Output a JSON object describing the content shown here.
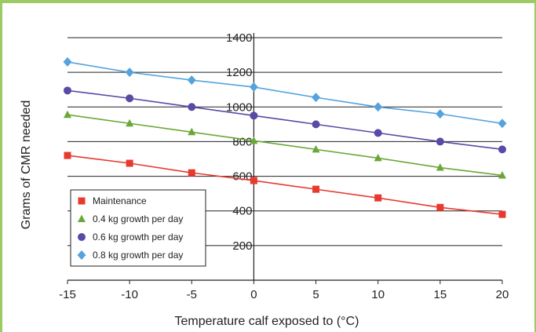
{
  "chart_data": {
    "type": "line",
    "title": "",
    "xlabel": "Temperature calf exposed to (°C)",
    "ylabel": "Grams of CMR needed",
    "x": [
      -15,
      -10,
      -5,
      0,
      5,
      10,
      15,
      20
    ],
    "xlim": [
      -15,
      20
    ],
    "ylim": [
      0,
      1400
    ],
    "x_ticks": [
      "-15",
      "-10",
      "-5",
      "0",
      "5",
      "10",
      "15",
      "20"
    ],
    "y_ticks": [
      "200",
      "400",
      "600",
      "800",
      "1000",
      "1200",
      "1400"
    ],
    "grid": "horizontal",
    "legend_position": "bottom-left",
    "series": [
      {
        "name": "Maintenance",
        "color": "#e8392f",
        "marker": "square",
        "values": [
          720,
          675,
          620,
          575,
          525,
          475,
          420,
          380
        ]
      },
      {
        "name": "0.4 kg growth per day",
        "color": "#6aa836",
        "marker": "triangle",
        "values": [
          955,
          905,
          855,
          805,
          755,
          705,
          650,
          605
        ]
      },
      {
        "name": "0.6 kg growth per day",
        "color": "#5a4aa6",
        "marker": "circle",
        "values": [
          1095,
          1050,
          1000,
          950,
          900,
          850,
          800,
          755
        ]
      },
      {
        "name": "0.8 kg growth per day",
        "color": "#54a3dc",
        "marker": "diamond",
        "values": [
          1260,
          1200,
          1155,
          1115,
          1055,
          1000,
          960,
          905
        ]
      }
    ]
  }
}
